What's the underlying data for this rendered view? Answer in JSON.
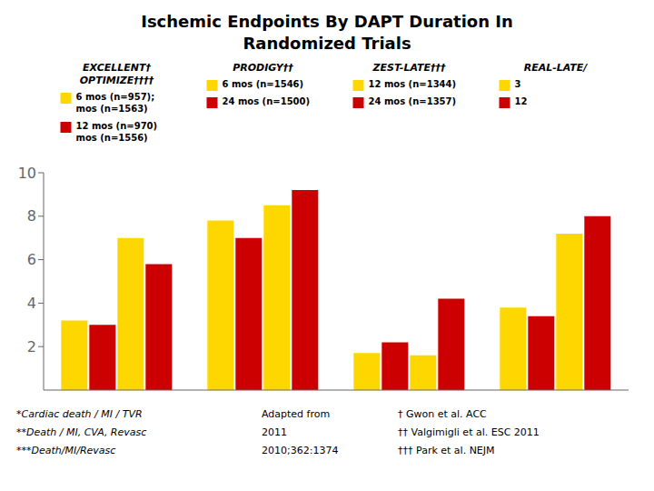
{
  "chart_data": {
    "type": "bar",
    "title": "Ischemic Endpoints By DAPT Duration In\nRandomized Trials",
    "categories": [
      "EXCELLENT†\nOPTIMIZE††††",
      "PRODIGY††",
      "ZEST-LATE†††",
      "REAL-LATE/"
    ],
    "series": [
      {
        "color": "#FFD700",
        "values": [
          3.2,
          7.8,
          1.7,
          3.8
        ]
      },
      {
        "color": "#CC0000",
        "values": [
          3.0,
          7.0,
          2.2,
          3.4
        ]
      },
      {
        "color": "#FFD700",
        "values": [
          7.0,
          8.5,
          1.6,
          7.2
        ]
      },
      {
        "color": "#CC0000",
        "values": [
          5.8,
          9.2,
          4.2,
          8.0
        ]
      }
    ],
    "group_legend": [
      [
        {
          "color": "#FFD700",
          "lines": [
            "6 mos (n=957);",
            "mos (n=1563)"
          ]
        },
        {
          "color": "#CC0000",
          "lines": [
            "12 mos (n=970)",
            "mos (n=1556)"
          ]
        }
      ],
      [
        {
          "color": "#FFD700",
          "lines": [
            "6 mos (n=1546)"
          ]
        },
        {
          "color": "#CC0000",
          "lines": [
            "24 mos (n=1500)"
          ]
        }
      ],
      [
        {
          "color": "#FFD700",
          "lines": [
            "12 mos (n=1344)"
          ]
        },
        {
          "color": "#CC0000",
          "lines": [
            "24 mos (n=1357)"
          ]
        }
      ],
      [
        {
          "color": "#FFD700",
          "lines": [
            "3"
          ]
        },
        {
          "color": "#CC0000",
          "lines": [
            "12"
          ]
        }
      ]
    ],
    "ylim": [
      0,
      10
    ],
    "yticks": [
      2,
      4,
      6,
      8,
      10
    ],
    "grid": false,
    "footnotes": [
      [
        "*Cardiac death / MI / TVR",
        "**Death / MI, CVA, Revasc",
        "***Death/MI/Revasc"
      ],
      [
        "Adapted from",
        "2011",
        "2010;362:1374"
      ],
      [
        "† Gwon et al. ACC",
        "†† Valgimigli et al. ESC 2011",
        "††† Park et al. NEJM"
      ]
    ]
  }
}
